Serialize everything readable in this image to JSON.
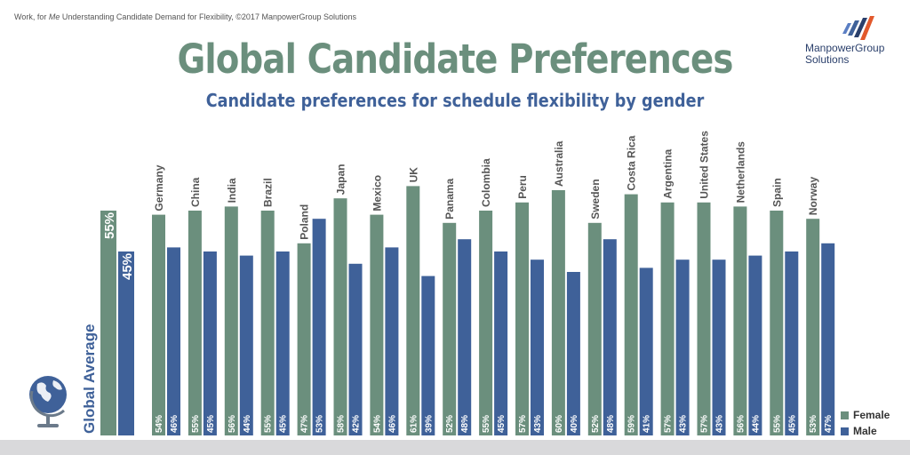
{
  "header": {
    "source_prefix": "Work, for ",
    "source_emph": "Me",
    "source_suffix": " Understanding Candidate Demand for Flexibility, ©2017 ManpowerGroup Solutions",
    "title": "Global Candidate Preferences",
    "subtitle": "Candidate preferences for schedule flexibility by gender"
  },
  "logo": {
    "line1": "ManpowerGroup",
    "line2": "Solutions",
    "icon": "manpowergroup-logo-icon"
  },
  "globe": {
    "icon": "globe-icon"
  },
  "colors": {
    "female": "#6b8f7d",
    "male": "#3f6199"
  },
  "chart_data": {
    "type": "bar",
    "global_average": {
      "label": "Global Average",
      "female": 55,
      "male": 45,
      "female_label": "55%",
      "male_label": "45%"
    },
    "categories": [
      "Germany",
      "China",
      "India",
      "Brazil",
      "Poland",
      "Japan",
      "Mexico",
      "UK",
      "Panama",
      "Colombia",
      "Peru",
      "Australia",
      "Sweden",
      "Costa Rica",
      "Argentina",
      "United States",
      "Netherlands",
      "Spain",
      "Norway"
    ],
    "series": [
      {
        "name": "Female",
        "values": [
          54,
          55,
          56,
          55,
          47,
          58,
          54,
          61,
          52,
          55,
          57,
          60,
          52,
          59,
          57,
          57,
          56,
          55,
          53
        ],
        "labels": [
          "54%",
          "55%",
          "56%",
          "55%",
          "47%",
          "58%",
          "54%",
          "61%",
          "52%",
          "55%",
          "57%",
          "60%",
          "52%",
          "59%",
          "57%",
          "57%",
          "56%",
          "55%",
          "53%"
        ]
      },
      {
        "name": "Male",
        "values": [
          46,
          45,
          44,
          45,
          53,
          42,
          46,
          39,
          48,
          45,
          43,
          40,
          48,
          41,
          43,
          43,
          44,
          45,
          47
        ],
        "labels": [
          "46%",
          "45%",
          "44%",
          "45%",
          "53%",
          "42%",
          "46%",
          "39%",
          "48%",
          "45%",
          "43%",
          "40%",
          "48%",
          "41%",
          "43%",
          "43%",
          "44%",
          "45%",
          "47%"
        ]
      }
    ],
    "legend": {
      "position": "bottom-right",
      "items": [
        "Female",
        "Male"
      ]
    },
    "ylim": [
      0,
      61
    ],
    "grid": false
  }
}
